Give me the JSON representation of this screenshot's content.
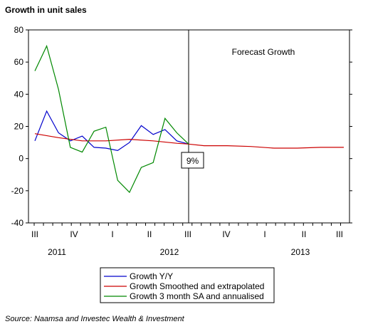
{
  "chart_data": {
    "type": "line",
    "title": "Growth in unit sales",
    "ylim": [
      -40,
      80
    ],
    "yticks": [
      80,
      60,
      40,
      20,
      0,
      -20,
      -40
    ],
    "quarter_labels": [
      "III",
      "IV",
      "I",
      "II",
      "III",
      "IV",
      "I",
      "II",
      "III"
    ],
    "year_labels": [
      "2011",
      "2012",
      "2013"
    ],
    "forecast_label": "Forecast Growth",
    "callout": "9%",
    "source": "Source: Naamsa and Investec Wealth & Investment",
    "grid": false,
    "legend_position": "bottom-center",
    "x_unit": "months from Jul 2011 (x=0 = Jul 2011; x=12 = Jul 2012)",
    "forecast_start_x": 13,
    "series": [
      {
        "name": "Growth Y/Y",
        "color": "#0000cc",
        "x": [
          0,
          1,
          2,
          3,
          4,
          5,
          6,
          7,
          8,
          9,
          10,
          11,
          12,
          13
        ],
        "y": [
          11,
          29.5,
          16,
          11,
          14,
          7,
          6.5,
          5,
          10,
          20.5,
          15,
          18,
          11,
          9
        ]
      },
      {
        "name": "Growth Smoothed and extrapolated",
        "color": "#cc0000",
        "x": [
          0,
          2,
          4,
          6,
          8,
          10,
          12,
          13,
          15,
          18,
          21,
          24,
          27,
          30,
          33
        ],
        "y": [
          15.5,
          13,
          11,
          11,
          12,
          11,
          9.5,
          9,
          8,
          8,
          7.5,
          6.5,
          6.5,
          7,
          7
        ]
      },
      {
        "name": "Growth 3 month SA and annualised",
        "color": "#008800",
        "x": [
          0,
          1,
          2,
          3,
          4,
          5,
          6,
          7,
          8,
          9,
          10,
          11,
          12,
          13
        ],
        "y": [
          54.5,
          70,
          43,
          7,
          4,
          17,
          19.5,
          -13.5,
          -21,
          -5.5,
          -2.5,
          25,
          16,
          9
        ]
      }
    ]
  }
}
